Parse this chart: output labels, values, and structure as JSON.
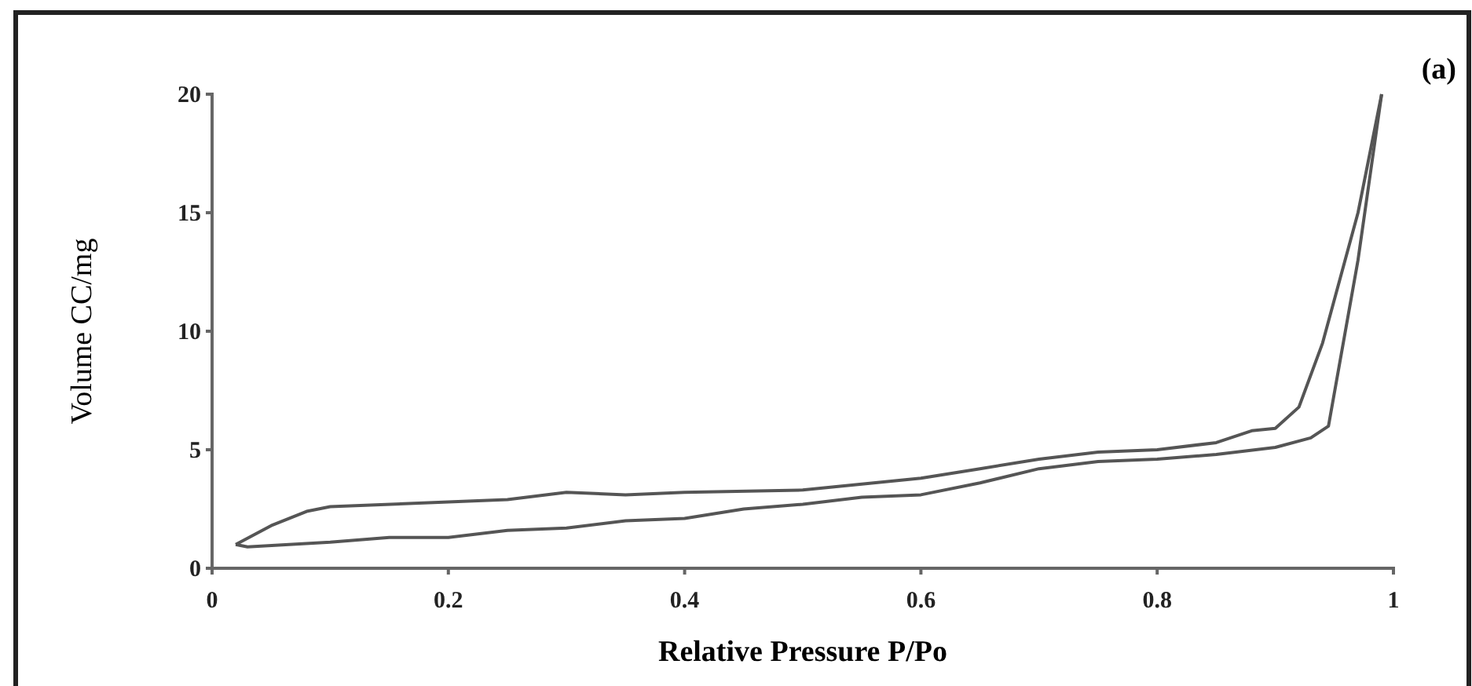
{
  "chart_data": {
    "type": "line",
    "xlabel": "Relative Pressure P/Po",
    "ylabel": "Volume CC/mg",
    "annotations": [
      "(a)"
    ],
    "xlim": [
      0,
      1
    ],
    "xticks": [
      0,
      0.2,
      0.4,
      0.6,
      0.8,
      1
    ],
    "ylim": [
      0,
      20
    ],
    "yticks": [
      0,
      5,
      10,
      15,
      20
    ],
    "grid": false,
    "marker": "none",
    "line_style": "solid",
    "series": [
      {
        "color": "#555555",
        "x": [
          0.02,
          0.03,
          0.1,
          0.15,
          0.2,
          0.25,
          0.3,
          0.35,
          0.4,
          0.45,
          0.5,
          0.55,
          0.6,
          0.65,
          0.7,
          0.75,
          0.8,
          0.85,
          0.9,
          0.93,
          0.945,
          0.97,
          0.99
        ],
        "values": [
          1.0,
          0.9,
          1.1,
          1.3,
          1.3,
          1.6,
          1.7,
          2.0,
          2.1,
          2.5,
          2.7,
          3.0,
          3.1,
          3.6,
          4.2,
          4.5,
          4.6,
          4.8,
          5.1,
          5.5,
          6.0,
          13,
          20
        ]
      },
      {
        "color": "#555555",
        "x": [
          0.02,
          0.05,
          0.08,
          0.1,
          0.2,
          0.25,
          0.3,
          0.35,
          0.4,
          0.5,
          0.6,
          0.65,
          0.7,
          0.75,
          0.8,
          0.85,
          0.88,
          0.9,
          0.92,
          0.94,
          0.97,
          0.99
        ],
        "values": [
          1.0,
          1.8,
          2.4,
          2.6,
          2.8,
          2.9,
          3.2,
          3.1,
          3.2,
          3.3,
          3.8,
          4.2,
          4.6,
          4.9,
          5.0,
          5.3,
          5.8,
          5.9,
          6.8,
          9.5,
          15,
          20
        ]
      }
    ]
  }
}
